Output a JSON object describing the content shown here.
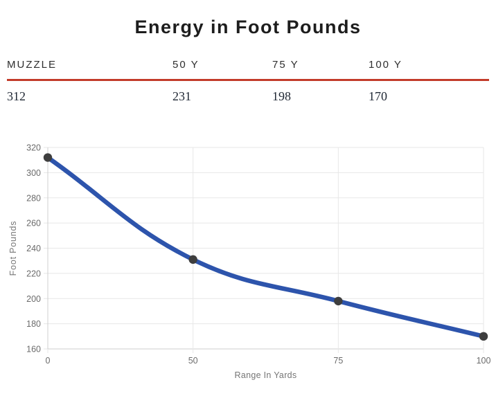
{
  "title": "Energy in Foot Pounds",
  "table": {
    "headers": [
      "MUZZLE",
      "50 Y",
      "75 Y",
      "100 Y"
    ],
    "values": [
      "312",
      "231",
      "198",
      "170"
    ]
  },
  "chart_data": {
    "type": "line",
    "categories": [
      "0",
      "50",
      "75",
      "100"
    ],
    "values": [
      312,
      231,
      198,
      170
    ],
    "title": "",
    "xlabel": "Range In Yards",
    "ylabel": "Foot Pounds",
    "ylim": [
      160,
      320
    ],
    "yticks": [
      160,
      180,
      200,
      220,
      240,
      260,
      280,
      300,
      320
    ],
    "grid": true,
    "legend_visible": false,
    "smooth": true
  },
  "colors": {
    "accent_red": "#c33b2a",
    "line_blue": "#2d54ac",
    "point_gray": "#3e3e3e",
    "grid_gray": "#e7e7e7",
    "axis_line_gray": "#cfcfcf",
    "tick_label_gray": "#6b6b6b",
    "axis_title_gray": "#757575",
    "title_dark": "#1d1d1d",
    "header_dark": "#2e2e2e",
    "value_dark": "#212935"
  }
}
